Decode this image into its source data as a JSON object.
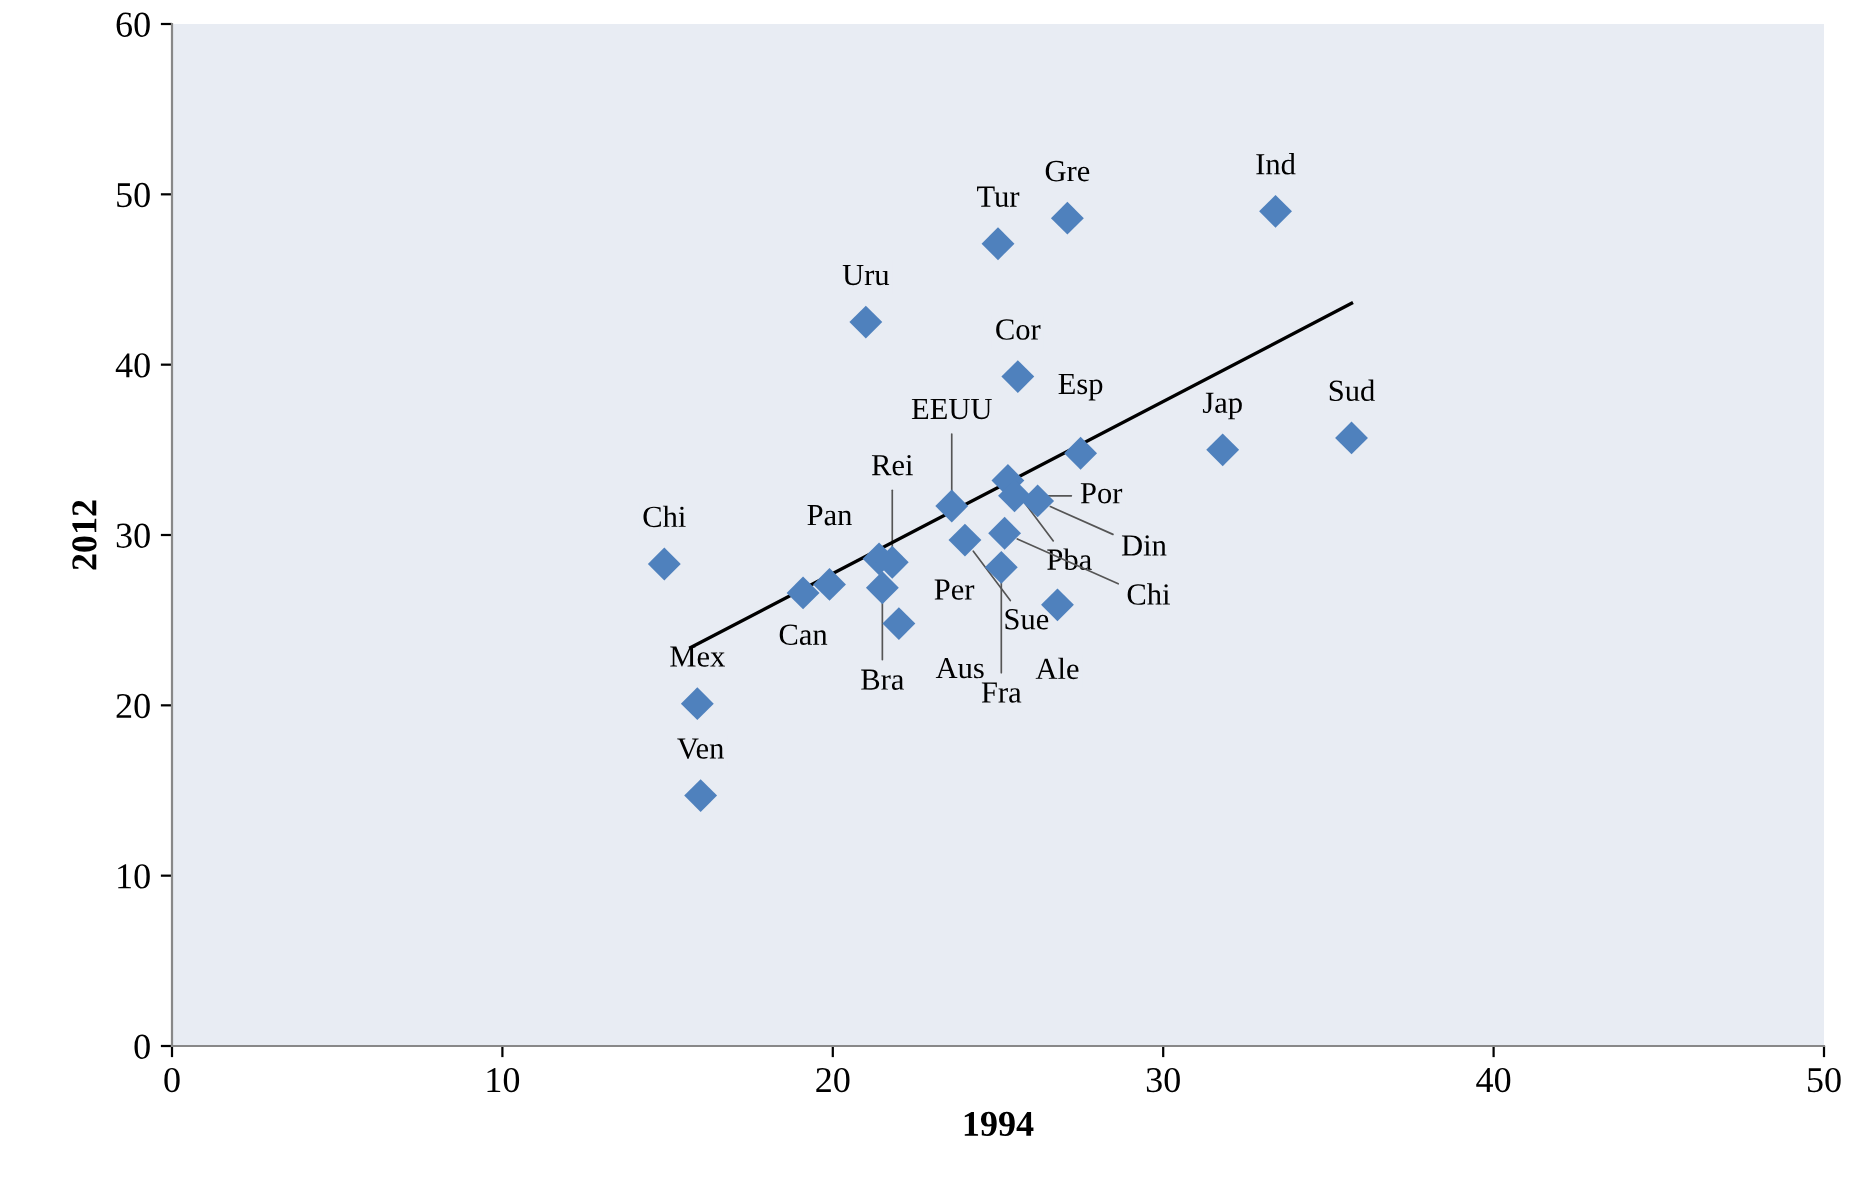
{
  "chart_data": {
    "type": "scatter",
    "xlabel": "1994",
    "ylabel": "2012",
    "xlim": [
      0,
      50
    ],
    "ylim": [
      0,
      60
    ],
    "xticks": [
      0,
      10,
      20,
      30,
      40,
      50
    ],
    "yticks": [
      0,
      10,
      20,
      30,
      40,
      50,
      60
    ],
    "grid": false,
    "legend": false,
    "marker": "diamond",
    "series": [
      {
        "color": "#4f81bd",
        "x": [
          14.9,
          15.9,
          16.0,
          19.1,
          19.9,
          21.4,
          21.8,
          21.5,
          22.0,
          23.6,
          24.0,
          25.3,
          25.5,
          26.2,
          25.2,
          25.1,
          26.8,
          21.0,
          25.0,
          27.1,
          33.4,
          25.6,
          27.5,
          31.8,
          35.7
        ],
        "values": [
          28.3,
          20.1,
          14.7,
          26.6,
          27.1,
          28.6,
          28.4,
          26.9,
          24.8,
          31.7,
          29.7,
          33.2,
          32.3,
          32.0,
          30.1,
          28.1,
          25.9,
          42.5,
          47.1,
          48.6,
          49.0,
          39.3,
          34.8,
          35.0,
          35.7
        ]
      },
      {
        "type": "line",
        "color": "#000000",
        "marker": "none",
        "x": [
          15.7,
          35.7
        ],
        "values": [
          23.4,
          43.6
        ]
      }
    ],
    "annotations": [
      {
        "text": "Chi",
        "x": 14.9,
        "y": 28.3
      },
      {
        "text": "Mex",
        "x": 15.9,
        "y": 20.1
      },
      {
        "text": "Ven",
        "x": 16.0,
        "y": 14.7
      },
      {
        "text": "Can",
        "x": 19.1,
        "y": 26.6
      },
      {
        "text": "Pan",
        "x": 19.9,
        "y": 27.1
      },
      {
        "text": "Per",
        "x": 21.4,
        "y": 28.6
      },
      {
        "text": "Rei",
        "x": 21.8,
        "y": 28.4
      },
      {
        "text": "Bra",
        "x": 21.5,
        "y": 26.9
      },
      {
        "text": "Aus",
        "x": 22.0,
        "y": 24.8
      },
      {
        "text": "EEUU",
        "x": 23.6,
        "y": 31.7
      },
      {
        "text": "Sue",
        "x": 24.0,
        "y": 29.7
      },
      {
        "text": "Pba",
        "x": 25.3,
        "y": 33.2
      },
      {
        "text": "Por",
        "x": 25.5,
        "y": 32.3
      },
      {
        "text": "Din",
        "x": 26.2,
        "y": 32.0
      },
      {
        "text": "Chi",
        "x": 25.2,
        "y": 30.1
      },
      {
        "text": "Fra",
        "x": 25.1,
        "y": 28.1
      },
      {
        "text": "Ale",
        "x": 26.8,
        "y": 25.9
      },
      {
        "text": "Uru",
        "x": 21.0,
        "y": 42.5
      },
      {
        "text": "Tur",
        "x": 25.0,
        "y": 47.1
      },
      {
        "text": "Gre",
        "x": 27.1,
        "y": 48.6
      },
      {
        "text": "Ind",
        "x": 33.4,
        "y": 49.0
      },
      {
        "text": "Cor",
        "x": 25.6,
        "y": 39.3
      },
      {
        "text": "Esp",
        "x": 27.5,
        "y": 34.8
      },
      {
        "text": "Jap",
        "x": 31.8,
        "y": 35.0
      },
      {
        "text": "Sud",
        "x": 35.7,
        "y": 35.7
      }
    ]
  }
}
